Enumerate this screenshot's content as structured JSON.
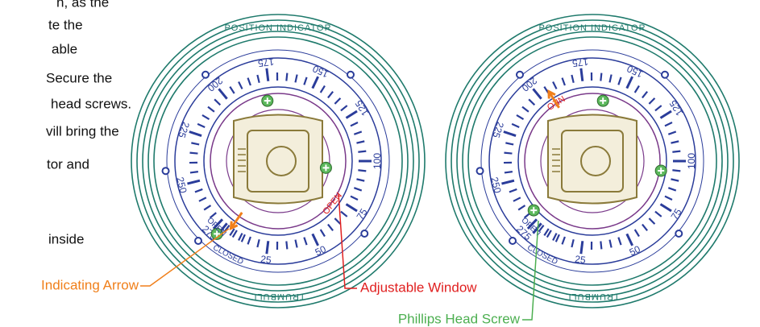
{
  "side_text": [
    "n, as the",
    "te the",
    "able",
    "Secure the",
    "head screws.",
    "vill bring the",
    "tor and",
    "inside"
  ],
  "dial": {
    "header": "POSITION INDICATOR",
    "footer": "TRUMBULL",
    "scale_labels": [
      "25",
      "50",
      "75",
      "100",
      "125",
      "150",
      "175",
      "200",
      "225",
      "250",
      "275"
    ],
    "open": "OPEN",
    "closed": "CLOSED"
  },
  "left_dial": {
    "window_text": "OPEN"
  },
  "right_dial": {
    "window_text": "NEO"
  },
  "callouts": {
    "indicating_arrow": "Indicating Arrow",
    "adjustable_window": "Adjustable Window",
    "phillips_head_screw": "Phillips Head Screw"
  }
}
